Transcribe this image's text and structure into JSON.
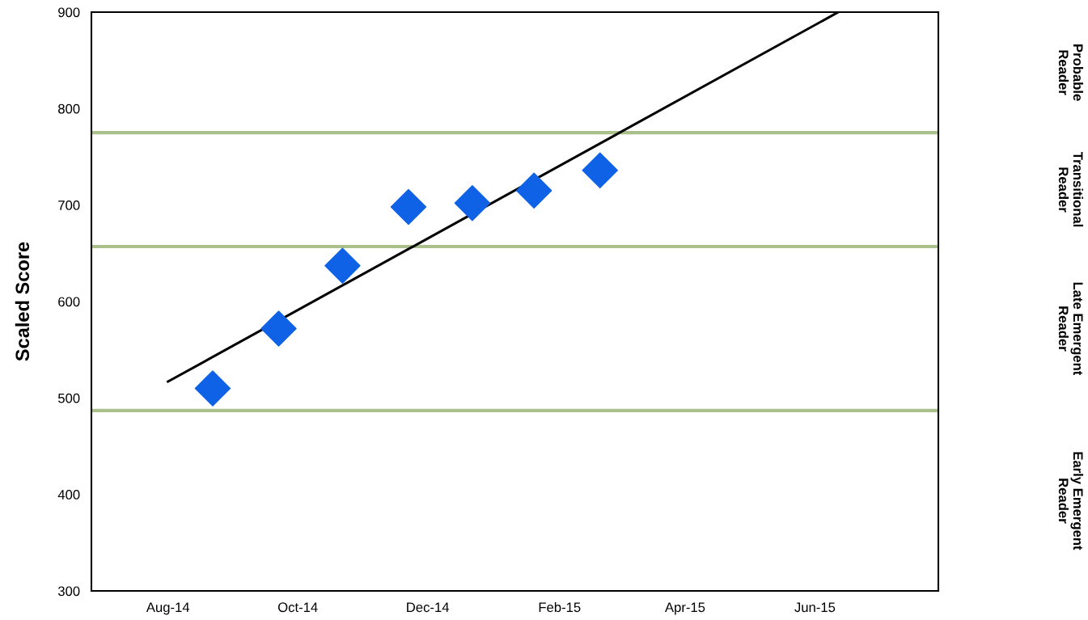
{
  "chart_data": {
    "type": "scatter",
    "ylabel": "Scaled Score",
    "series": [
      {
        "color": "#0f62e6",
        "marker": "diamond",
        "x": [
          "2014-08-22",
          "2014-09-22",
          "2014-10-22",
          "2014-11-22",
          "2014-12-22",
          "2015-01-20",
          "2015-02-20"
        ],
        "values": [
          510,
          572,
          637,
          698,
          702,
          715,
          736
        ]
      },
      {
        "type": "line",
        "color": "#000000",
        "marker": "none",
        "x": [
          "2014-08-01",
          "2015-06-12"
        ],
        "values": [
          517,
          900
        ]
      }
    ],
    "xlim": [
      "2014-06-26",
      "2015-07-29"
    ],
    "xticks": [
      {
        "value": "2014-08-01",
        "label": "Aug-14"
      },
      {
        "value": "2014-10-01",
        "label": "Oct-14"
      },
      {
        "value": "2014-12-01",
        "label": "Dec-14"
      },
      {
        "value": "2015-02-01",
        "label": "Feb-15"
      },
      {
        "value": "2015-04-01",
        "label": "Apr-15"
      },
      {
        "value": "2015-06-01",
        "label": "Jun-15"
      }
    ],
    "ylim": [
      300,
      900
    ],
    "yticks": [
      300,
      400,
      500,
      600,
      700,
      800,
      900
    ],
    "ref_lines": [
      {
        "axis": "y",
        "value": 487,
        "color": "#a9c08a"
      },
      {
        "axis": "y",
        "value": 657,
        "color": "#a9c08a"
      },
      {
        "axis": "y",
        "value": 775,
        "color": "#a9c08a"
      }
    ],
    "annotations": [
      "Probable\nReader",
      "Transitional\nReader",
      "Late Emergent\nReader",
      "Early Emergent\nReader"
    ],
    "grid": false,
    "legend": false
  }
}
